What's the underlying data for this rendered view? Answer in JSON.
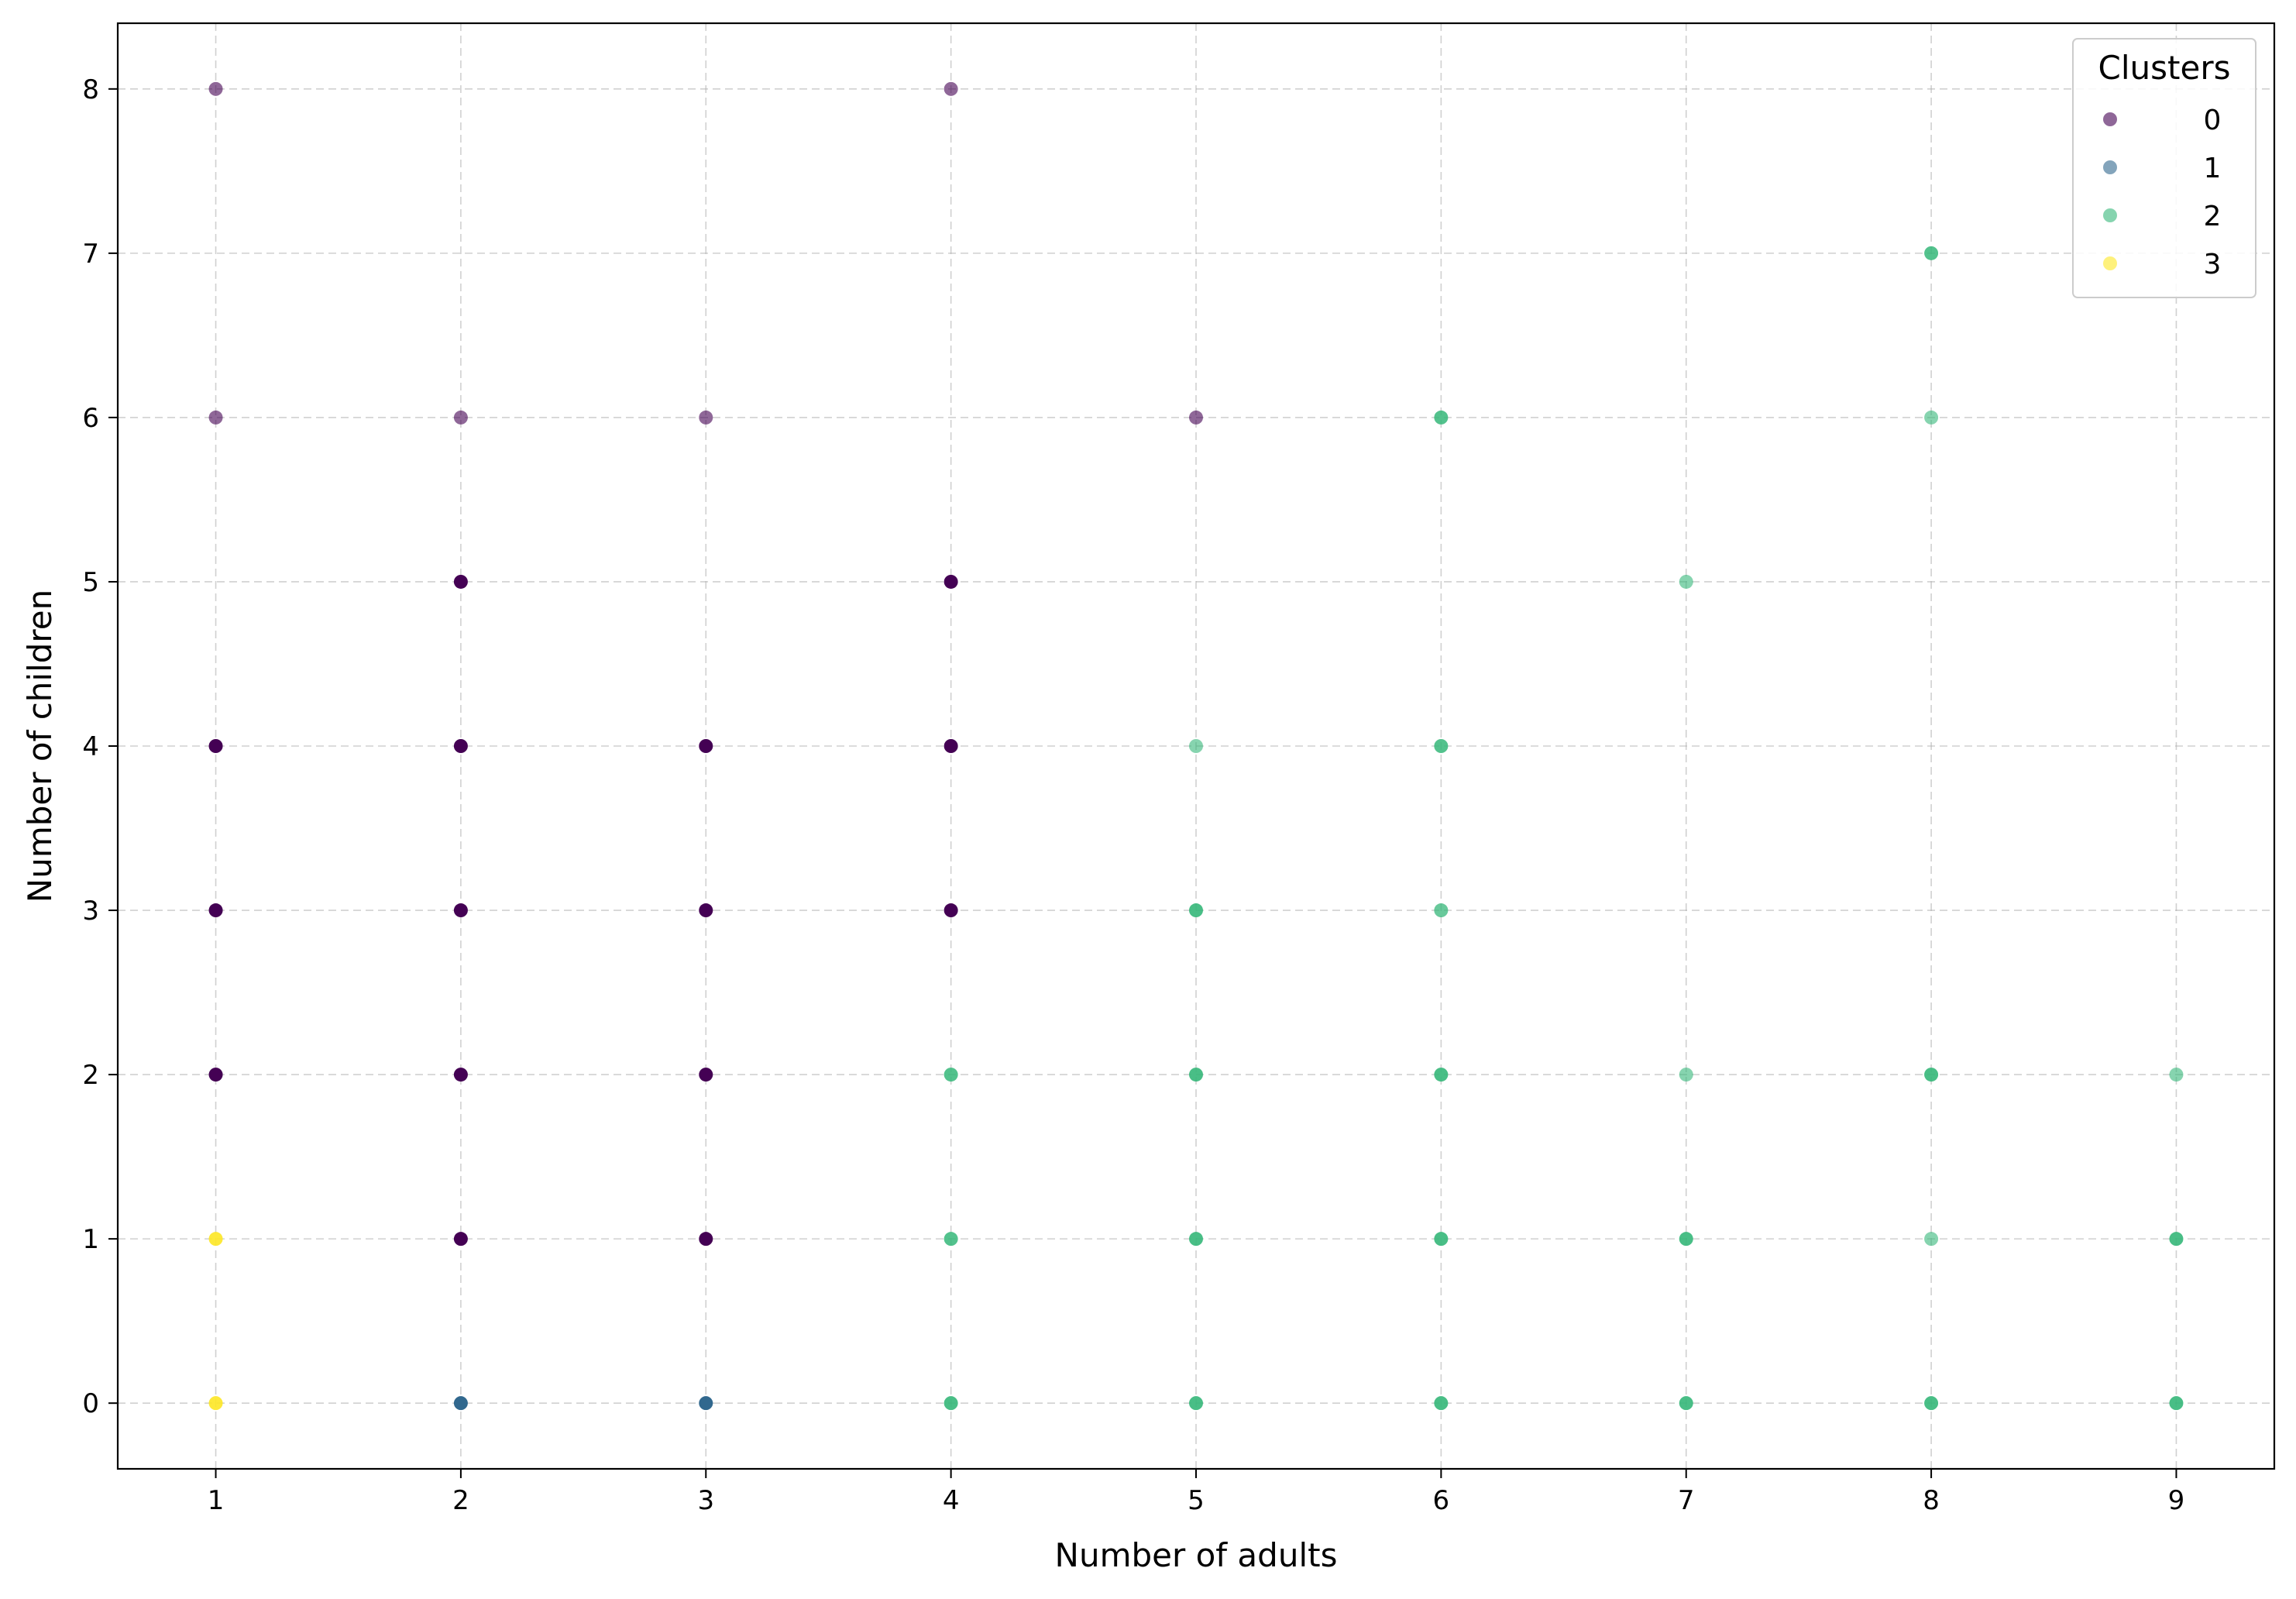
{
  "chart_data": {
    "type": "scatter",
    "xlabel": "Number of adults",
    "ylabel": "Number of children",
    "xlim": [
      0.6,
      9.4
    ],
    "ylim": [
      -0.4,
      8.4
    ],
    "xticks": [
      1,
      2,
      3,
      4,
      5,
      6,
      7,
      8,
      9
    ],
    "yticks": [
      0,
      1,
      2,
      3,
      4,
      5,
      6,
      7,
      8
    ],
    "grid": true,
    "legend": {
      "title": "Clusters",
      "placement": "top-right"
    },
    "series": [
      {
        "name": "0",
        "color": "#440154",
        "points": [
          {
            "x": 1,
            "y": 8,
            "opacity": 0.6
          },
          {
            "x": 4,
            "y": 8,
            "opacity": 0.6
          },
          {
            "x": 1,
            "y": 6,
            "opacity": 0.6
          },
          {
            "x": 2,
            "y": 6,
            "opacity": 0.6
          },
          {
            "x": 3,
            "y": 6,
            "opacity": 0.6
          },
          {
            "x": 5,
            "y": 6,
            "opacity": 0.6
          },
          {
            "x": 2,
            "y": 5,
            "opacity": 1
          },
          {
            "x": 4,
            "y": 5,
            "opacity": 1
          },
          {
            "x": 1,
            "y": 4,
            "opacity": 1
          },
          {
            "x": 2,
            "y": 4,
            "opacity": 1
          },
          {
            "x": 3,
            "y": 4,
            "opacity": 1
          },
          {
            "x": 4,
            "y": 4,
            "opacity": 1
          },
          {
            "x": 1,
            "y": 3,
            "opacity": 1
          },
          {
            "x": 2,
            "y": 3,
            "opacity": 1
          },
          {
            "x": 3,
            "y": 3,
            "opacity": 1
          },
          {
            "x": 4,
            "y": 3,
            "opacity": 1
          },
          {
            "x": 1,
            "y": 2,
            "opacity": 1
          },
          {
            "x": 2,
            "y": 2,
            "opacity": 1
          },
          {
            "x": 3,
            "y": 2,
            "opacity": 1
          },
          {
            "x": 2,
            "y": 1,
            "opacity": 1
          },
          {
            "x": 3,
            "y": 1,
            "opacity": 1
          }
        ]
      },
      {
        "name": "1",
        "color": "#31688e",
        "points": [
          {
            "x": 2,
            "y": 0,
            "opacity": 1
          },
          {
            "x": 3,
            "y": 0,
            "opacity": 1
          }
        ]
      },
      {
        "name": "2",
        "color": "#35b779",
        "points": [
          {
            "x": 8,
            "y": 7,
            "opacity": 0.85
          },
          {
            "x": 6,
            "y": 6,
            "opacity": 0.85
          },
          {
            "x": 8,
            "y": 6,
            "opacity": 0.6
          },
          {
            "x": 7,
            "y": 5,
            "opacity": 0.6
          },
          {
            "x": 5,
            "y": 4,
            "opacity": 0.6
          },
          {
            "x": 6,
            "y": 4,
            "opacity": 0.85
          },
          {
            "x": 5,
            "y": 3,
            "opacity": 0.9
          },
          {
            "x": 6,
            "y": 3,
            "opacity": 0.75
          },
          {
            "x": 4,
            "y": 2,
            "opacity": 0.85
          },
          {
            "x": 5,
            "y": 2,
            "opacity": 0.9
          },
          {
            "x": 6,
            "y": 2,
            "opacity": 0.9
          },
          {
            "x": 7,
            "y": 2,
            "opacity": 0.6
          },
          {
            "x": 8,
            "y": 2,
            "opacity": 0.9
          },
          {
            "x": 9,
            "y": 2,
            "opacity": 0.6
          },
          {
            "x": 4,
            "y": 1,
            "opacity": 0.85
          },
          {
            "x": 5,
            "y": 1,
            "opacity": 0.9
          },
          {
            "x": 6,
            "y": 1,
            "opacity": 0.9
          },
          {
            "x": 7,
            "y": 1,
            "opacity": 0.9
          },
          {
            "x": 8,
            "y": 1,
            "opacity": 0.6
          },
          {
            "x": 9,
            "y": 1,
            "opacity": 0.9
          },
          {
            "x": 4,
            "y": 0,
            "opacity": 0.9
          },
          {
            "x": 5,
            "y": 0,
            "opacity": 0.9
          },
          {
            "x": 6,
            "y": 0,
            "opacity": 0.9
          },
          {
            "x": 7,
            "y": 0,
            "opacity": 0.9
          },
          {
            "x": 8,
            "y": 0,
            "opacity": 0.9
          },
          {
            "x": 9,
            "y": 0,
            "opacity": 0.9
          }
        ]
      },
      {
        "name": "3",
        "color": "#fde725",
        "points": [
          {
            "x": 1,
            "y": 1,
            "opacity": 0.9
          },
          {
            "x": 1,
            "y": 0,
            "opacity": 0.9
          }
        ]
      }
    ]
  }
}
